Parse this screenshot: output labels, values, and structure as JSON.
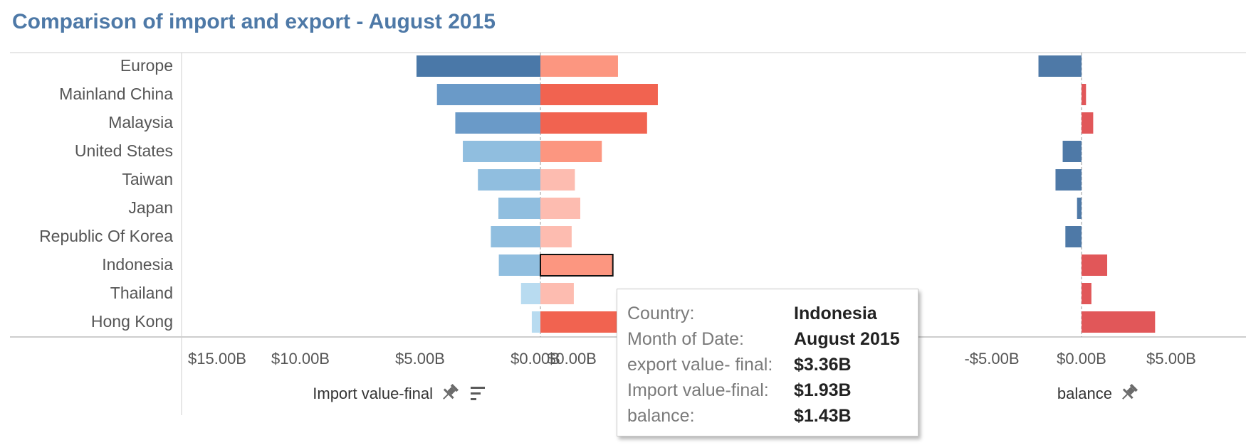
{
  "title": "Comparison of import and export - August 2015",
  "chart_data": {
    "type": "bar",
    "categories": [
      "Europe",
      "Mainland China",
      "Malaysia",
      "United States",
      "Taiwan",
      "Japan",
      "Republic Of Korea",
      "Indonesia",
      "Thailand",
      "Hong Kong"
    ],
    "panels": [
      {
        "measure": "Import value-final",
        "axis_title": "Import value-final",
        "orientation": "reversed",
        "values": [
          5.75,
          4.8,
          3.95,
          3.6,
          2.9,
          1.95,
          2.3,
          1.93,
          0.9,
          0.4
        ],
        "colors": [
          "#4a78a8",
          "#6a9ac8",
          "#6a9ac8",
          "#90bedf",
          "#90bedf",
          "#90bedf",
          "#90bedf",
          "#90bedf",
          "#b8dbf0",
          "#b8dbf0"
        ],
        "xlim": [
          -15,
          0
        ],
        "tick_labels": [
          "$15.00B",
          "$10.00B",
          "$5.00B",
          "$0.00B"
        ]
      },
      {
        "measure": "export value- final",
        "values": [
          3.6,
          5.45,
          4.95,
          2.85,
          1.6,
          1.85,
          1.45,
          3.36,
          1.55,
          6.0
        ],
        "colors": [
          "#fc9680",
          "#f16350",
          "#f16350",
          "#fc9680",
          "#fdbcb0",
          "#fdbcb0",
          "#fdbcb0",
          "#fc9680",
          "#fdbcb0",
          "#f16350"
        ],
        "xlim": [
          0,
          15
        ],
        "tick_labels": [
          "$0.00B"
        ]
      },
      {
        "measure": "balance",
        "axis_title": "balance",
        "values": [
          -2.4,
          0.25,
          0.65,
          -1.05,
          -1.45,
          -0.25,
          -0.9,
          1.43,
          0.55,
          4.1
        ],
        "colors": [
          "#4e79a7",
          "#e15759",
          "#e15759",
          "#4e79a7",
          "#4e79a7",
          "#4e79a7",
          "#4e79a7",
          "#e15759",
          "#e15759",
          "#e15759"
        ],
        "xlim": [
          -10,
          10
        ],
        "tick_labels": [
          "-$5.00B",
          "$0.00B",
          "$5.00B"
        ]
      }
    ],
    "highlight": {
      "category": "Indonesia",
      "panel": "export value- final"
    }
  },
  "tooltip": {
    "rows": [
      {
        "key": "Country:",
        "value": "Indonesia"
      },
      {
        "key": "Month of Date:",
        "value": "August 2015"
      },
      {
        "key": "export value- final:",
        "value": "$3.36B"
      },
      {
        "key": "Import value-final:",
        "value": "$1.93B"
      },
      {
        "key": "balance:",
        "value": "$1.43B"
      }
    ]
  },
  "icons": {
    "pin": "pin-icon",
    "sort": "sort-icon"
  }
}
